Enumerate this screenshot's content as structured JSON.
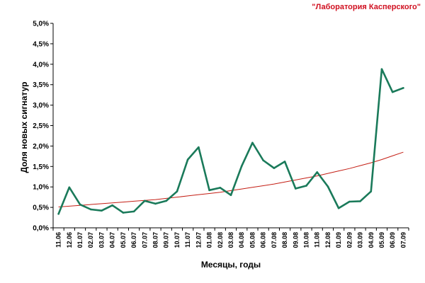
{
  "header": {
    "brand_text": "\"Лаборатория Касперского\""
  },
  "colors": {
    "brand": "#d01020",
    "series": "#1a7a5a",
    "trend": "#c41e14",
    "axis": "#000000"
  },
  "chart_data": {
    "type": "line",
    "title": "",
    "xlabel": "Месяцы, годы",
    "ylabel": "Доля новых сигнатур",
    "x": [
      "11.06",
      "12.06",
      "01.07",
      "02.07",
      "03.07",
      "04.07",
      "05.07",
      "06.07",
      "07.07",
      "08.07",
      "09.07",
      "10.07",
      "11.07",
      "12.07",
      "01.08",
      "02.08",
      "03.08",
      "04.08",
      "05.08",
      "06.08",
      "07.08",
      "08.08",
      "09.08",
      "10.08",
      "11.08",
      "12.08",
      "01.09",
      "02.09",
      "03.09",
      "04.09",
      "05.09",
      "06.09",
      "07.09"
    ],
    "ylim": [
      0,
      5
    ],
    "y_ticks": [
      0,
      0.5,
      1,
      1.5,
      2,
      2.5,
      3,
      3.5,
      4,
      4.5,
      5
    ],
    "y_tick_labels": [
      "0,0%",
      "0,5%",
      "1,0%",
      "1,5%",
      "2,0%",
      "2,5%",
      "3,0%",
      "3,5%",
      "4,0%",
      "4,5%",
      "5,0%"
    ],
    "grid": false,
    "legend": "none",
    "series": [
      {
        "values": [
          0.34,
          0.99,
          0.57,
          0.45,
          0.42,
          0.55,
          0.37,
          0.4,
          0.66,
          0.59,
          0.66,
          0.89,
          1.67,
          1.97,
          0.92,
          0.98,
          0.8,
          1.51,
          2.08,
          1.65,
          1.46,
          1.62,
          0.96,
          1.03,
          1.36,
          1.01,
          0.48,
          0.64,
          0.65,
          0.89,
          3.88,
          3.32,
          3.42
        ]
      },
      {
        "style": "exponential trend",
        "values": [
          0.51,
          0.53,
          0.55,
          0.57,
          0.59,
          0.61,
          0.63,
          0.65,
          0.67,
          0.69,
          0.72,
          0.75,
          0.78,
          0.81,
          0.84,
          0.87,
          0.91,
          0.95,
          0.99,
          1.03,
          1.07,
          1.12,
          1.17,
          1.22,
          1.27,
          1.33,
          1.39,
          1.45,
          1.52,
          1.59,
          1.67,
          1.76,
          1.85
        ]
      }
    ]
  }
}
